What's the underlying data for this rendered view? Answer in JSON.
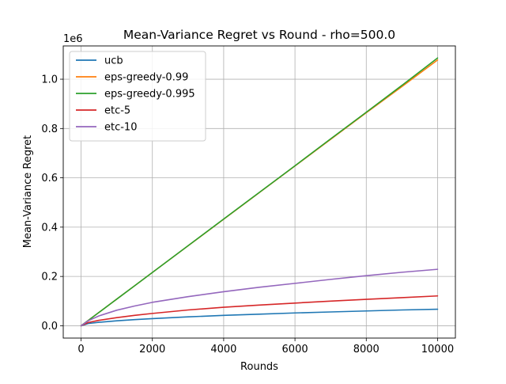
{
  "chart_data": {
    "type": "line",
    "title": "Mean-Variance Regret vs Round - rho=500.0",
    "xlabel": "Rounds",
    "ylabel": "Mean-Variance Regret",
    "y_offset_label": "1e6",
    "y_scale": 1000000,
    "xlim": [
      -500,
      10500
    ],
    "ylim": [
      -50000,
      1135000
    ],
    "xticks": [
      0,
      2000,
      4000,
      6000,
      8000,
      10000
    ],
    "xtick_labels": [
      "0",
      "2000",
      "4000",
      "6000",
      "8000",
      "10000"
    ],
    "yticks": [
      0,
      200000,
      400000,
      600000,
      800000,
      1000000
    ],
    "ytick_labels": [
      "0.0",
      "0.2",
      "0.4",
      "0.6",
      "0.8",
      "1.0"
    ],
    "grid": true,
    "legend_position": "upper-left",
    "x": [
      0,
      200,
      500,
      1000,
      1500,
      2000,
      3000,
      4000,
      5000,
      6000,
      7000,
      8000,
      9000,
      10000
    ],
    "series": [
      {
        "name": "ucb",
        "color": "#1f77b4",
        "values": [
          0,
          9000,
          14000,
          20000,
          25000,
          29000,
          36000,
          42000,
          47000,
          52000,
          56000,
          60000,
          64000,
          67000
        ]
      },
      {
        "name": "eps-greedy-0.99",
        "color": "#ff7f0e",
        "values": [
          0,
          21500,
          54000,
          108000,
          162000,
          216000,
          324000,
          432000,
          540000,
          648000,
          756000,
          864000,
          970000,
          1078000
        ]
      },
      {
        "name": "eps-greedy-0.995",
        "color": "#2ca02c",
        "values": [
          0,
          21500,
          54000,
          108000,
          162000,
          216000,
          324500,
          433000,
          541000,
          649000,
          758000,
          866000,
          975000,
          1086000
        ]
      },
      {
        "name": "etc-5",
        "color": "#d62728",
        "values": [
          0,
          13000,
          22000,
          33000,
          42000,
          50000,
          64000,
          75000,
          84000,
          92000,
          100000,
          107000,
          114000,
          121000
        ]
      },
      {
        "name": "etc-10",
        "color": "#9467bd",
        "values": [
          0,
          20000,
          40000,
          63000,
          80000,
          95000,
          118000,
          138000,
          156000,
          172000,
          188000,
          203000,
          217000,
          229000
        ]
      }
    ]
  }
}
